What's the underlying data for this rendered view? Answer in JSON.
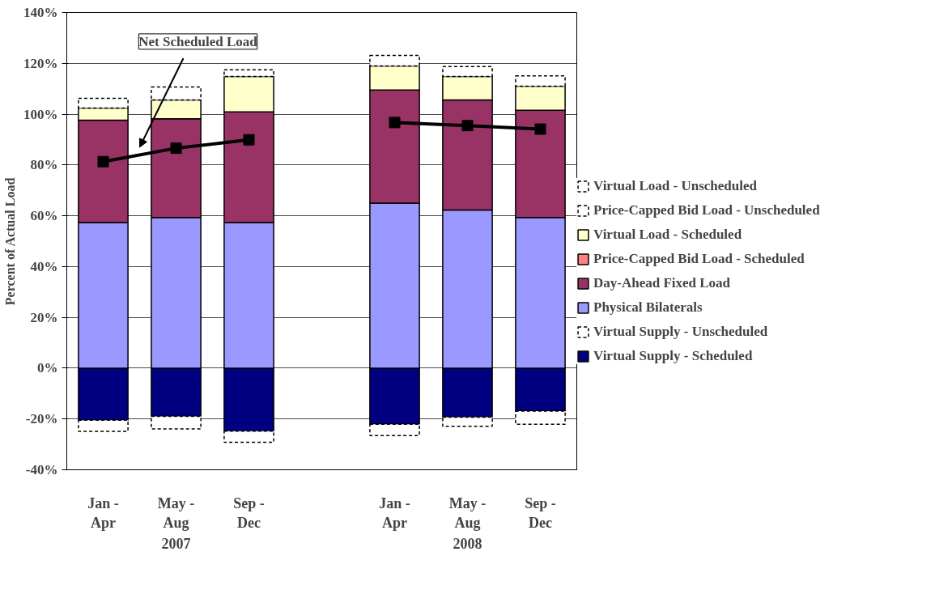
{
  "chart_data": {
    "type": "bar",
    "stacked": true,
    "ylabel": "Percent of Actual Load",
    "categories": [
      "Jan -\nApr",
      "May -\nAug",
      "Sep -\nDec",
      null,
      "Jan -\nApr",
      "May -\nAug",
      "Sep -\nDec"
    ],
    "series": [
      {
        "name": "Virtual Supply - Scheduled",
        "color": "#000080",
        "values": [
          -20.5,
          -19.0,
          -24.8,
          null,
          -22.1,
          -19.3,
          -16.9
        ]
      },
      {
        "name": "Virtual Supply - Unscheduled",
        "color": "#ffffff",
        "line_style": "dashed",
        "values": [
          -4.4,
          -4.9,
          -4.4,
          null,
          -4.4,
          -3.6,
          -5.2
        ]
      },
      {
        "name": "Physical Bilaterals",
        "color": "#9999ff",
        "values": [
          57.3,
          59.3,
          57.3,
          null,
          65.0,
          62.3,
          59.3
        ]
      },
      {
        "name": "Day-Ahead Fixed Load",
        "color": "#993366",
        "values": [
          40.3,
          38.9,
          43.6,
          null,
          44.5,
          43.3,
          42.2
        ]
      },
      {
        "name": "Price-Capped Bid Load - Scheduled",
        "color": "#ff8080",
        "values": [
          0,
          0,
          0,
          null,
          0,
          0,
          0
        ]
      },
      {
        "name": "Virtual Load - Scheduled",
        "color": "#ffffcc",
        "values": [
          4.8,
          7.4,
          13.9,
          null,
          9.5,
          9.2,
          9.5
        ]
      },
      {
        "name": "Price-Capped Bid Load - Unscheduled",
        "color": "#ffffff",
        "line_style": "dashed",
        "values": [
          0,
          0,
          0,
          null,
          0,
          0,
          0
        ]
      },
      {
        "name": "Virtual Load - Unscheduled",
        "color": "#ffffff",
        "line_style": "dashed",
        "values": [
          3.8,
          5.1,
          2.7,
          null,
          4.1,
          3.9,
          4.1
        ]
      },
      {
        "name": "Net Scheduled Load",
        "type": "line",
        "color": "#000000",
        "marker": "square",
        "values": [
          81.3,
          86.6,
          89.9,
          null,
          96.7,
          95.5,
          94.1
        ]
      }
    ],
    "annotations": [
      "2007",
      "2008"
    ],
    "ylim": [
      -40,
      140
    ],
    "yticks": [
      {
        "value": -40,
        "label": "-40%"
      },
      {
        "value": -20,
        "label": "-20%"
      },
      {
        "value": 0,
        "label": "0%"
      },
      {
        "value": 20,
        "label": "20%"
      },
      {
        "value": 40,
        "label": "40%"
      },
      {
        "value": 60,
        "label": "60%"
      },
      {
        "value": 80,
        "label": "80%"
      },
      {
        "value": 100,
        "label": "100%"
      },
      {
        "value": 120,
        "label": "120%"
      },
      {
        "value": 140,
        "label": "140%"
      }
    ],
    "grid": "y",
    "legend": "right"
  }
}
